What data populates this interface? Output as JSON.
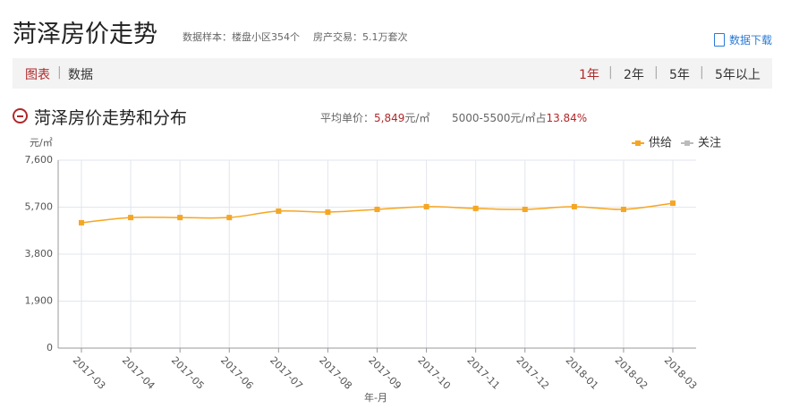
{
  "header": {
    "title": "菏泽房价走势",
    "sample": "数据样本：楼盘小区354个",
    "trades": "房产交易：5.1万套次",
    "download": "数据下载"
  },
  "tabs": {
    "left": [
      "图表",
      "数据"
    ],
    "right": [
      "1年",
      "2年",
      "5年",
      "5年以上"
    ]
  },
  "section": {
    "title": "菏泽房价走势和分布",
    "avg_label": "平均单价：",
    "avg_value": "5,849",
    "avg_unit": "元/㎡",
    "dist_label": "5000-5500元/㎡占",
    "dist_value": "13.84%"
  },
  "chart_data": {
    "type": "line",
    "y_unit": "元/㎡",
    "x_label": "年-月",
    "categories": [
      "2017-03",
      "2017-04",
      "2017-05",
      "2017-06",
      "2017-07",
      "2017-08",
      "2017-09",
      "2017-10",
      "2017-11",
      "2017-12",
      "2018-01",
      "2018-02",
      "2018-03"
    ],
    "series": [
      {
        "name": "供给",
        "color": "#f5a623",
        "values": [
          5070,
          5280,
          5280,
          5280,
          5540,
          5500,
          5610,
          5720,
          5650,
          5610,
          5720,
          5610,
          5860
        ]
      },
      {
        "name": "关注",
        "color": "#bbbbbb",
        "values": [
          null,
          null,
          null,
          null,
          null,
          null,
          null,
          null,
          null,
          null,
          null,
          null,
          null
        ]
      }
    ],
    "ylim": [
      0,
      7600
    ],
    "yticks": [
      0,
      {
        "value": 1900,
        "label": "1,900"
      },
      {
        "value": 3800,
        "label": "3,800"
      },
      {
        "value": 5700,
        "label": "5,700"
      },
      {
        "value": 7600,
        "label": "7,600"
      }
    ],
    "grid": true
  }
}
